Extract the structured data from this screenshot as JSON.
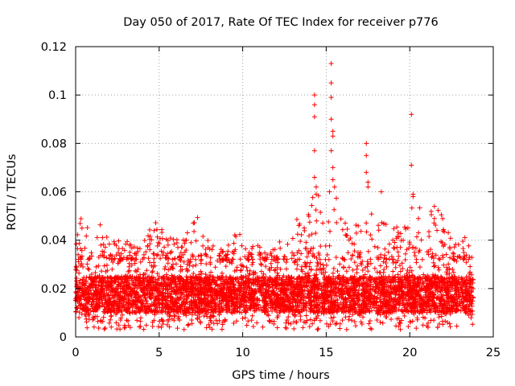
{
  "chart_data": {
    "type": "scatter",
    "title": "Day 050 of 2017, Rate Of TEC Index for receiver p776",
    "xlabel": "GPS time / hours",
    "ylabel": "ROTI / TECUs",
    "xlim": [
      0,
      25
    ],
    "ylim": [
      0,
      0.12
    ],
    "x_ticks": [
      0,
      5,
      10,
      15,
      20,
      25
    ],
    "y_ticks": [
      0,
      0.02,
      0.04,
      0.06,
      0.08,
      0.1,
      0.12
    ],
    "x_tick_labels": [
      "0",
      "5",
      "10",
      "15",
      "20",
      "25"
    ],
    "y_tick_labels": [
      "0",
      "0.02",
      "0.04",
      "0.06",
      "0.08",
      "0.1",
      "0.12"
    ],
    "grid": true,
    "marker": "+",
    "color": "#ff0000",
    "series": [
      {
        "name": "ROTI",
        "band": {
          "x_range": [
            0.0,
            23.8
          ],
          "typical_range": [
            0.006,
            0.032
          ],
          "dense_core": [
            0.01,
            0.025
          ],
          "upper_envelope": [
            [
              0.0,
              0.04
            ],
            [
              0.3,
              0.05
            ],
            [
              1.0,
              0.042
            ],
            [
              1.3,
              0.049
            ],
            [
              2.0,
              0.04
            ],
            [
              3.0,
              0.04
            ],
            [
              4.0,
              0.042
            ],
            [
              4.7,
              0.048
            ],
            [
              5.5,
              0.042
            ],
            [
              6.5,
              0.04
            ],
            [
              7.2,
              0.052
            ],
            [
              8.0,
              0.04
            ],
            [
              9.0,
              0.038
            ],
            [
              9.8,
              0.045
            ],
            [
              10.5,
              0.04
            ],
            [
              11.5,
              0.038
            ],
            [
              12.5,
              0.04
            ],
            [
              13.0,
              0.048
            ],
            [
              13.8,
              0.05
            ],
            [
              14.4,
              0.062
            ],
            [
              15.0,
              0.058
            ],
            [
              15.5,
              0.06
            ],
            [
              16.5,
              0.045
            ],
            [
              17.2,
              0.05
            ],
            [
              17.6,
              0.052
            ],
            [
              18.5,
              0.048
            ],
            [
              19.5,
              0.045
            ],
            [
              20.2,
              0.058
            ],
            [
              21.0,
              0.05
            ],
            [
              21.7,
              0.056
            ],
            [
              22.5,
              0.04
            ],
            [
              23.3,
              0.043
            ],
            [
              23.8,
              0.032
            ]
          ],
          "lower_edge": 0.003
        },
        "outliers": [
          {
            "x": 14.3,
            "y": 0.1
          },
          {
            "x": 14.3,
            "y": 0.096
          },
          {
            "x": 14.3,
            "y": 0.091
          },
          {
            "x": 14.3,
            "y": 0.077
          },
          {
            "x": 14.3,
            "y": 0.066
          },
          {
            "x": 14.4,
            "y": 0.062
          },
          {
            "x": 14.4,
            "y": 0.059
          },
          {
            "x": 15.3,
            "y": 0.113
          },
          {
            "x": 15.3,
            "y": 0.105
          },
          {
            "x": 15.3,
            "y": 0.099
          },
          {
            "x": 15.3,
            "y": 0.09
          },
          {
            "x": 15.4,
            "y": 0.085
          },
          {
            "x": 15.4,
            "y": 0.083
          },
          {
            "x": 15.3,
            "y": 0.077
          },
          {
            "x": 15.4,
            "y": 0.07
          },
          {
            "x": 15.4,
            "y": 0.065
          },
          {
            "x": 15.5,
            "y": 0.062
          },
          {
            "x": 15.2,
            "y": 0.06
          },
          {
            "x": 17.4,
            "y": 0.08
          },
          {
            "x": 17.4,
            "y": 0.075
          },
          {
            "x": 17.4,
            "y": 0.068
          },
          {
            "x": 17.5,
            "y": 0.064
          },
          {
            "x": 17.5,
            "y": 0.062
          },
          {
            "x": 18.3,
            "y": 0.06
          },
          {
            "x": 20.1,
            "y": 0.092
          },
          {
            "x": 20.1,
            "y": 0.071
          },
          {
            "x": 20.2,
            "y": 0.059
          },
          {
            "x": 20.2,
            "y": 0.058
          }
        ]
      }
    ]
  }
}
